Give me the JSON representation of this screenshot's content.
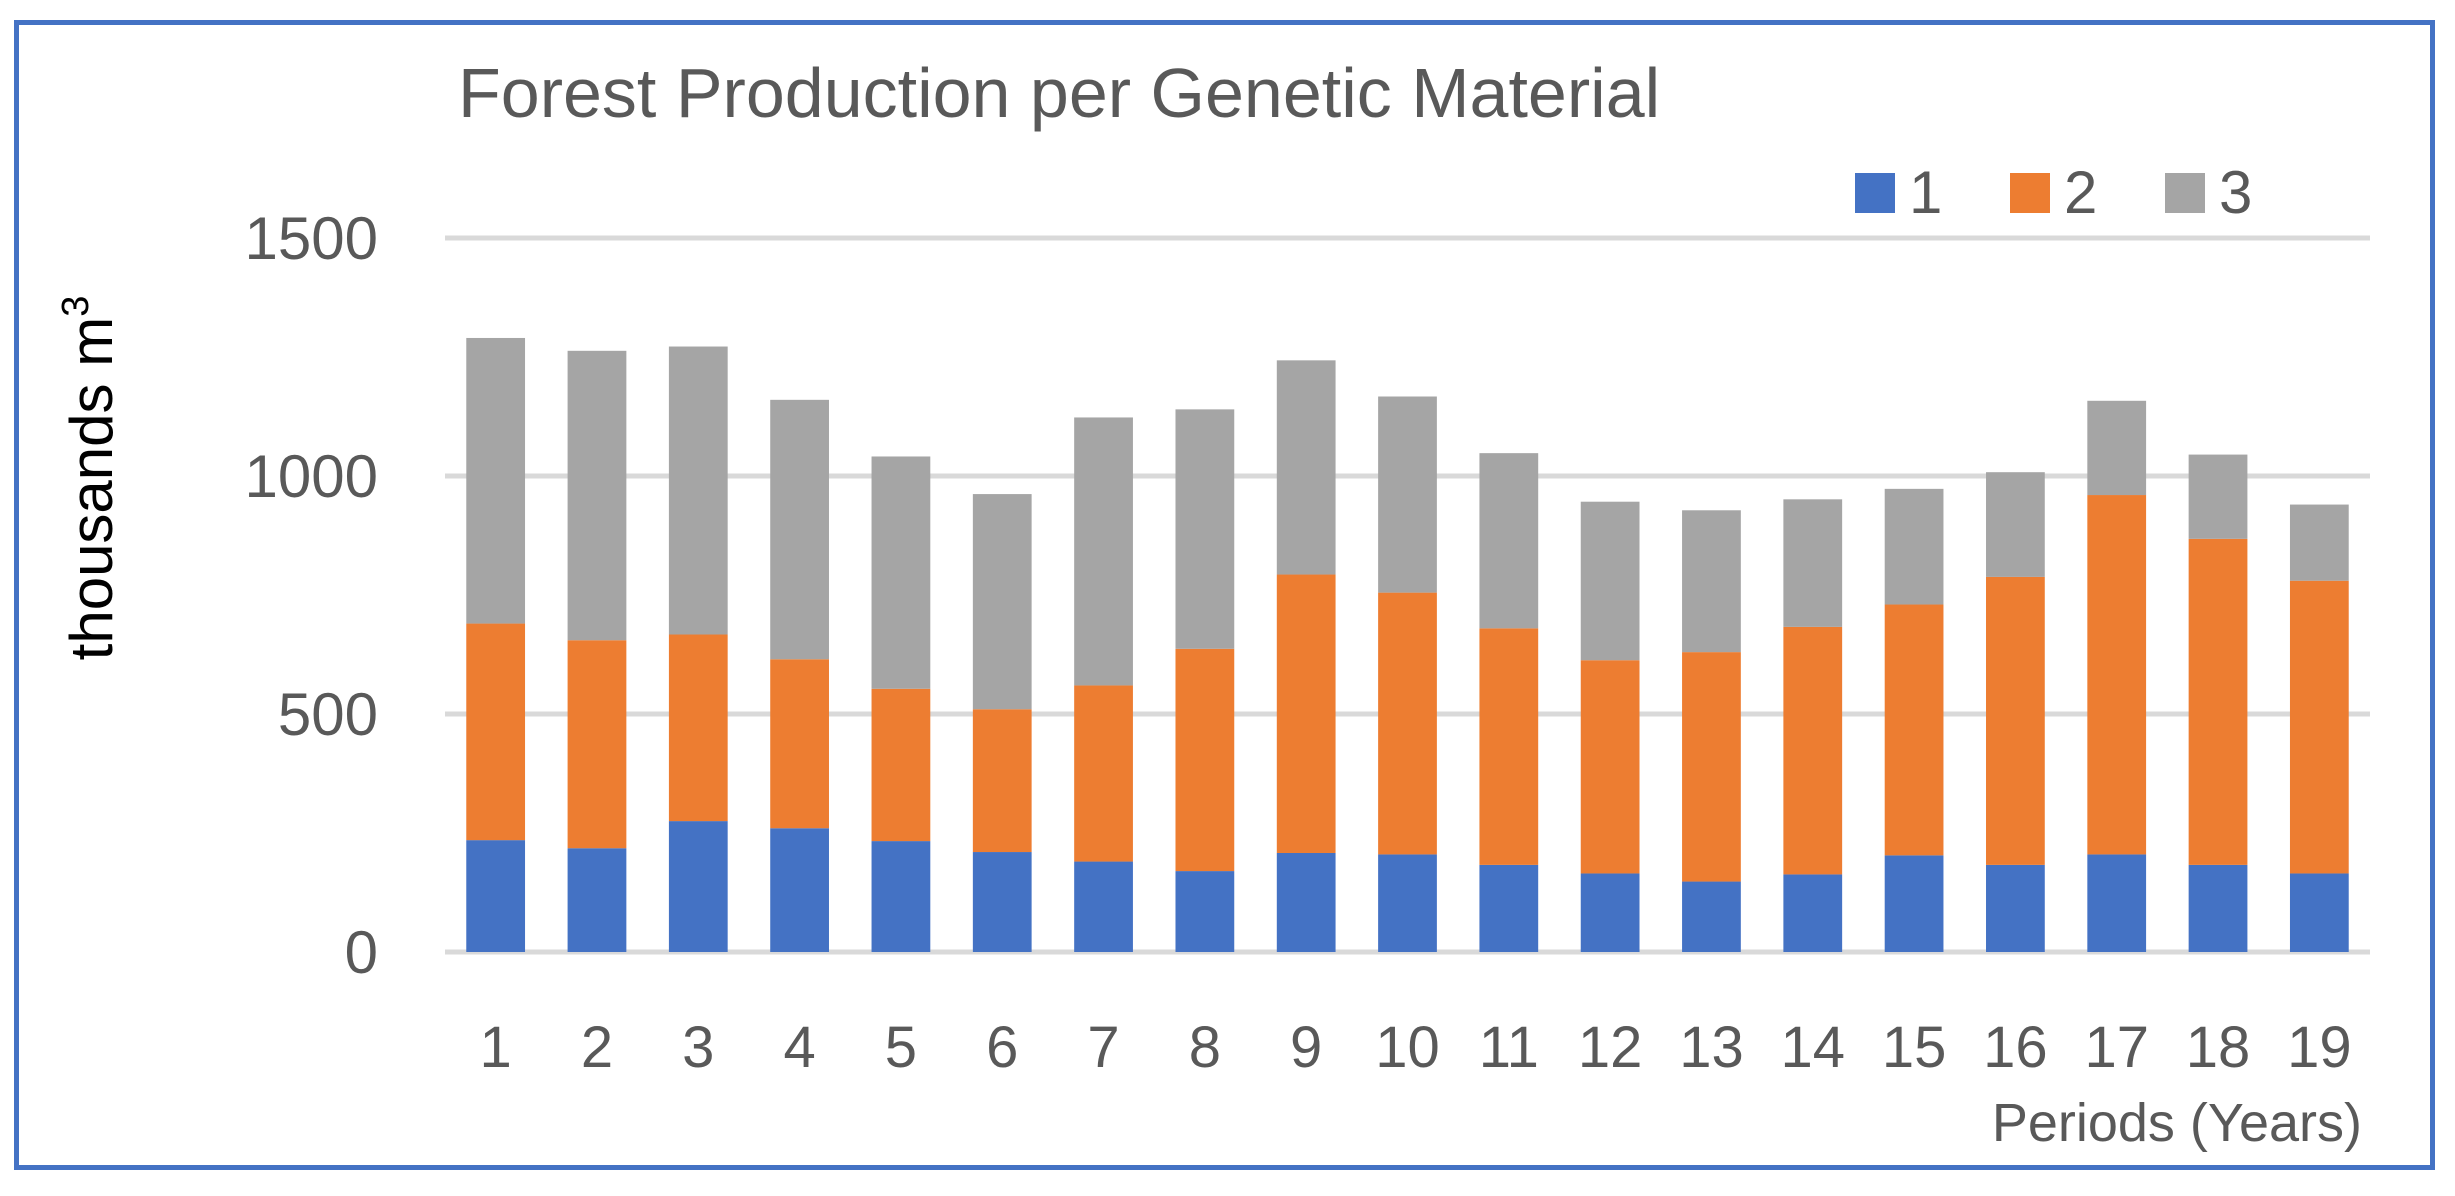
{
  "chart_data": {
    "type": "bar",
    "stacked": true,
    "title": "Forest Production per Genetic Material",
    "ylabel": "thousands m",
    "ylabel_superscript": "3",
    "xlabel": "Periods (Years)",
    "ylim": [
      0,
      1500
    ],
    "yticks": [
      0,
      500,
      1000,
      1500
    ],
    "grid": true,
    "legend_position": "top-right",
    "categories": [
      "1",
      "2",
      "3",
      "4",
      "5",
      "6",
      "7",
      "8",
      "9",
      "10",
      "11",
      "12",
      "13",
      "14",
      "15",
      "16",
      "17",
      "18",
      "19"
    ],
    "series": [
      {
        "name": "1",
        "color": "#4472c4",
        "values": [
          235,
          218,
          275,
          260,
          233,
          210,
          190,
          170,
          208,
          205,
          183,
          165,
          148,
          163,
          203,
          183,
          205,
          183,
          165
        ]
      },
      {
        "name": "2",
        "color": "#ed7d31",
        "values": [
          455,
          437,
          392,
          355,
          320,
          300,
          370,
          467,
          585,
          550,
          497,
          448,
          482,
          520,
          527,
          605,
          755,
          685,
          615
        ]
      },
      {
        "name": "3",
        "color": "#a5a5a5",
        "values": [
          600,
          608,
          605,
          545,
          488,
          452,
          563,
          503,
          450,
          412,
          368,
          333,
          298,
          268,
          243,
          220,
          198,
          177,
          160
        ]
      }
    ]
  }
}
